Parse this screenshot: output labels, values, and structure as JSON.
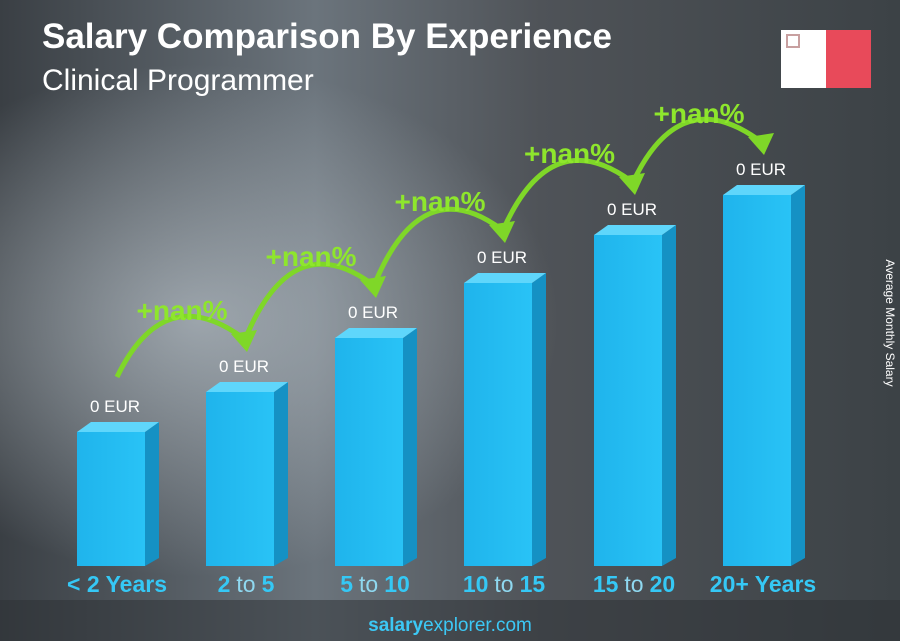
{
  "header": {
    "title": "Salary Comparison By Experience",
    "subtitle": "Clinical Programmer"
  },
  "axis_label": "Average Monthly Salary",
  "categories": [
    [
      "< 2 Years"
    ],
    [
      "2",
      "to",
      "5"
    ],
    [
      "5",
      "to",
      "10"
    ],
    [
      "10",
      "to",
      "15"
    ],
    [
      "15",
      "to",
      "20"
    ],
    [
      "20+ Years"
    ]
  ],
  "value_labels": [
    "0 EUR",
    "0 EUR",
    "0 EUR",
    "0 EUR",
    "0 EUR",
    "0 EUR"
  ],
  "changes": [
    "+nan%",
    "+nan%",
    "+nan%",
    "+nan%",
    "+nan%"
  ],
  "footer": [
    "salary",
    "explorer.com"
  ]
}
